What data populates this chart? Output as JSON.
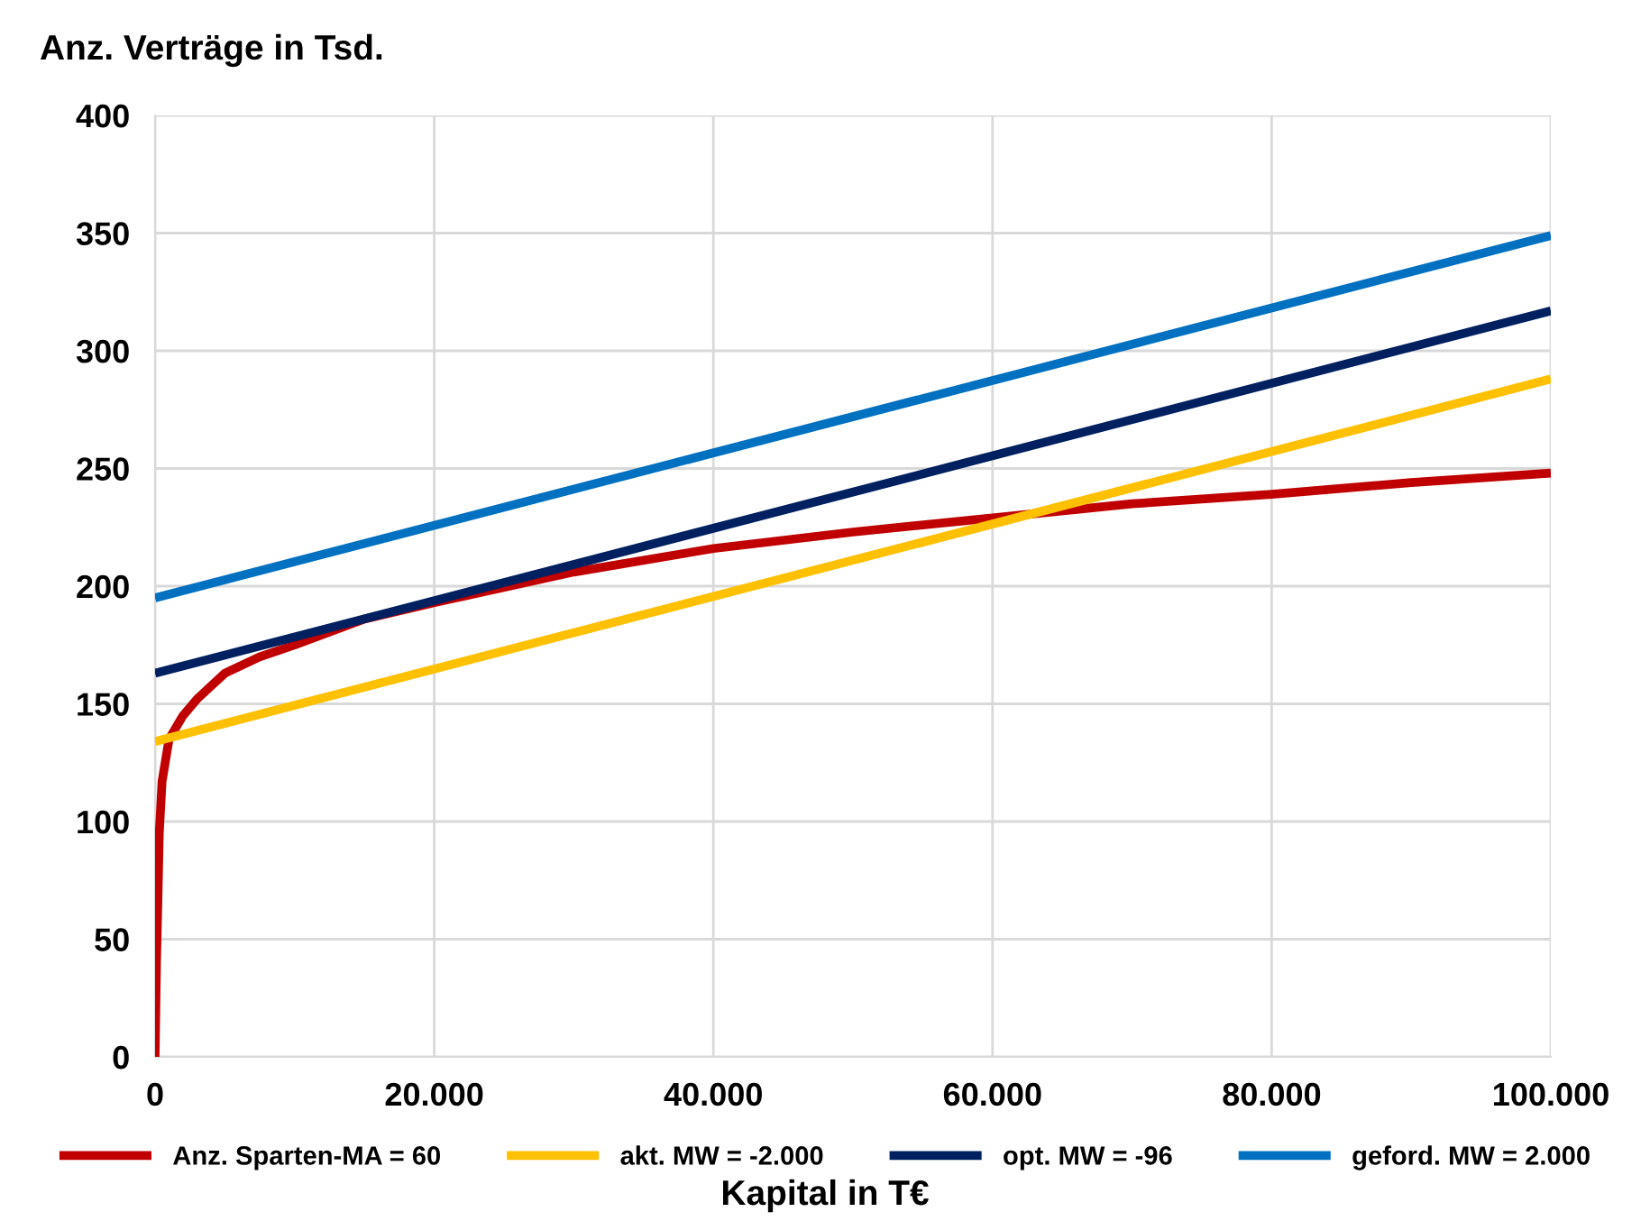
{
  "chart_data": {
    "type": "line",
    "title": "Anz. Verträge in Tsd.",
    "xlabel": "Kapital in T€",
    "xlim": [
      0,
      100000
    ],
    "ylim": [
      0,
      400
    ],
    "xticks": [
      {
        "value": 0,
        "label": "0"
      },
      {
        "value": 20000,
        "label": "20.000"
      },
      {
        "value": 40000,
        "label": "40.000"
      },
      {
        "value": 60000,
        "label": "60.000"
      },
      {
        "value": 80000,
        "label": "80.000"
      },
      {
        "value": 100000,
        "label": "100.000"
      }
    ],
    "yticks": [
      0,
      50,
      100,
      150,
      200,
      250,
      300,
      350,
      400
    ],
    "grid": true,
    "legend": "bottom",
    "marker": "none",
    "line_style": "solid",
    "series": [
      {
        "name": "Anz. Sparten-MA = 60",
        "color": "#c00000",
        "x": [
          0,
          100,
          200,
          300,
          500,
          1000,
          2000,
          3000,
          5000,
          7500,
          10000,
          15000,
          20000,
          30000,
          40000,
          50000,
          60000,
          70000,
          80000,
          90000,
          100000
        ],
        "values": [
          0,
          40,
          66,
          95,
          117,
          135,
          145,
          152,
          163,
          170,
          175,
          186,
          193,
          206,
          216,
          223,
          229,
          235,
          239,
          244,
          248
        ]
      },
      {
        "name": "akt. MW = -2.000",
        "color": "#ffc000",
        "x": [
          0,
          100000
        ],
        "values": [
          134,
          288
        ]
      },
      {
        "name": "opt. MW = -96",
        "color": "#002060",
        "x": [
          0,
          100000
        ],
        "values": [
          163,
          317
        ]
      },
      {
        "name": "geford. MW = 2.000",
        "color": "#0070c0",
        "x": [
          0,
          100000
        ],
        "values": [
          195,
          349
        ]
      }
    ]
  }
}
